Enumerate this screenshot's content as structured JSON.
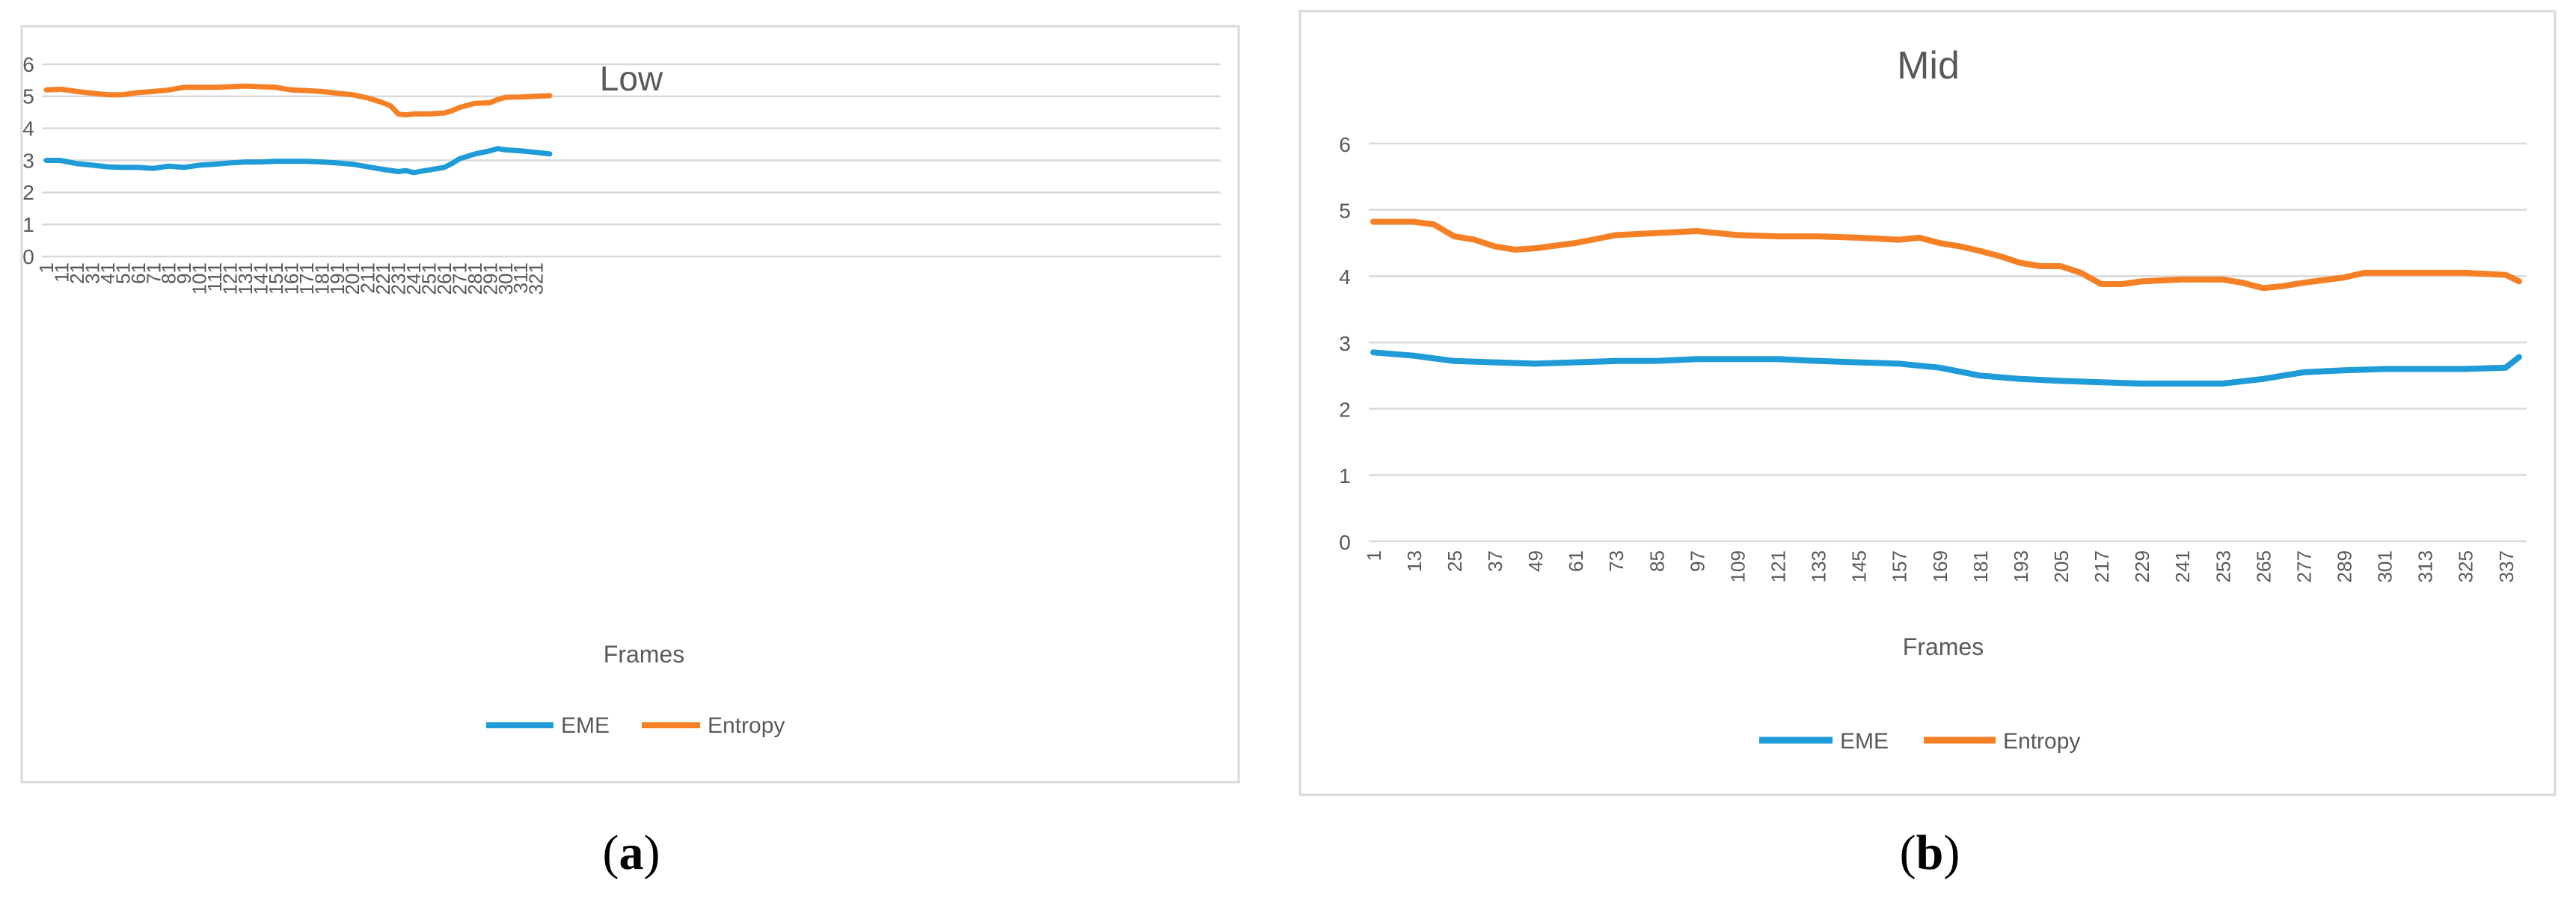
{
  "chart_data": [
    {
      "type": "line",
      "title": "Low",
      "xlabel": "Frames",
      "ylabel": "",
      "ylim": [
        0,
        6
      ],
      "yticks": [
        "0",
        "1",
        "2",
        "3",
        "4",
        "5",
        "6"
      ],
      "x_count": 330,
      "xticks": [
        "1",
        "11",
        "21",
        "31",
        "41",
        "51",
        "61",
        "71",
        "81",
        "91",
        "101",
        "111",
        "121",
        "131",
        "141",
        "151",
        "161",
        "171",
        "181",
        "191",
        "201",
        "211",
        "221",
        "231",
        "241",
        "251",
        "261",
        "271",
        "281",
        "291",
        "301",
        "311",
        "321"
      ],
      "legend": [
        "EME",
        "Entropy"
      ],
      "caption_open": "(",
      "caption_letter": "a",
      "caption_close": ")",
      "series": [
        {
          "name": "EME",
          "color": "#1F9BD7",
          "points": [
            [
              1,
              3.0
            ],
            [
              10,
              3.0
            ],
            [
              21,
              2.9
            ],
            [
              31,
              2.85
            ],
            [
              41,
              2.8
            ],
            [
              51,
              2.78
            ],
            [
              61,
              2.78
            ],
            [
              71,
              2.75
            ],
            [
              81,
              2.82
            ],
            [
              91,
              2.78
            ],
            [
              101,
              2.85
            ],
            [
              111,
              2.88
            ],
            [
              121,
              2.92
            ],
            [
              131,
              2.95
            ],
            [
              141,
              2.95
            ],
            [
              151,
              2.97
            ],
            [
              161,
              2.97
            ],
            [
              171,
              2.97
            ],
            [
              181,
              2.95
            ],
            [
              191,
              2.92
            ],
            [
              201,
              2.88
            ],
            [
              211,
              2.8
            ],
            [
              221,
              2.72
            ],
            [
              231,
              2.65
            ],
            [
              236,
              2.68
            ],
            [
              241,
              2.62
            ],
            [
              251,
              2.7
            ],
            [
              261,
              2.78
            ],
            [
              266,
              2.9
            ],
            [
              271,
              3.05
            ],
            [
              281,
              3.2
            ],
            [
              291,
              3.3
            ],
            [
              296,
              3.37
            ],
            [
              301,
              3.33
            ],
            [
              311,
              3.3
            ],
            [
              321,
              3.25
            ],
            [
              330,
              3.2
            ]
          ]
        },
        {
          "name": "Entropy",
          "color": "#F58025",
          "points": [
            [
              1,
              5.2
            ],
            [
              11,
              5.22
            ],
            [
              21,
              5.15
            ],
            [
              31,
              5.1
            ],
            [
              41,
              5.05
            ],
            [
              51,
              5.05
            ],
            [
              61,
              5.12
            ],
            [
              71,
              5.15
            ],
            [
              81,
              5.2
            ],
            [
              91,
              5.28
            ],
            [
              101,
              5.28
            ],
            [
              111,
              5.28
            ],
            [
              121,
              5.3
            ],
            [
              131,
              5.32
            ],
            [
              141,
              5.3
            ],
            [
              151,
              5.28
            ],
            [
              161,
              5.2
            ],
            [
              171,
              5.18
            ],
            [
              181,
              5.15
            ],
            [
              191,
              5.1
            ],
            [
              201,
              5.05
            ],
            [
              211,
              4.95
            ],
            [
              221,
              4.8
            ],
            [
              226,
              4.7
            ],
            [
              231,
              4.45
            ],
            [
              236,
              4.42
            ],
            [
              241,
              4.45
            ],
            [
              251,
              4.45
            ],
            [
              261,
              4.48
            ],
            [
              266,
              4.55
            ],
            [
              271,
              4.65
            ],
            [
              281,
              4.78
            ],
            [
              291,
              4.8
            ],
            [
              296,
              4.9
            ],
            [
              301,
              4.97
            ],
            [
              311,
              4.98
            ],
            [
              321,
              5.0
            ],
            [
              330,
              5.02
            ]
          ]
        }
      ]
    },
    {
      "type": "line",
      "title": "Mid",
      "xlabel": "Frames",
      "ylabel": "",
      "ylim": [
        0,
        6
      ],
      "yticks": [
        "0",
        "1",
        "2",
        "3",
        "4",
        "5",
        "6"
      ],
      "x_count": 341,
      "xticks": [
        "1",
        "13",
        "25",
        "37",
        "49",
        "61",
        "73",
        "85",
        "97",
        "109",
        "121",
        "133",
        "145",
        "157",
        "169",
        "181",
        "193",
        "205",
        "217",
        "229",
        "241",
        "253",
        "265",
        "277",
        "289",
        "301",
        "313",
        "325",
        "337"
      ],
      "legend": [
        "EME",
        "Entropy"
      ],
      "caption_open": "(",
      "caption_letter": "b",
      "caption_close": ")",
      "series": [
        {
          "name": "EME",
          "color": "#1F9BD7",
          "points": [
            [
              1,
              2.85
            ],
            [
              13,
              2.8
            ],
            [
              25,
              2.72
            ],
            [
              37,
              2.7
            ],
            [
              49,
              2.68
            ],
            [
              61,
              2.7
            ],
            [
              73,
              2.72
            ],
            [
              85,
              2.72
            ],
            [
              97,
              2.75
            ],
            [
              109,
              2.75
            ],
            [
              121,
              2.75
            ],
            [
              133,
              2.72
            ],
            [
              145,
              2.7
            ],
            [
              157,
              2.68
            ],
            [
              169,
              2.62
            ],
            [
              181,
              2.5
            ],
            [
              193,
              2.45
            ],
            [
              205,
              2.42
            ],
            [
              217,
              2.4
            ],
            [
              229,
              2.38
            ],
            [
              241,
              2.38
            ],
            [
              253,
              2.38
            ],
            [
              265,
              2.45
            ],
            [
              277,
              2.55
            ],
            [
              289,
              2.58
            ],
            [
              301,
              2.6
            ],
            [
              313,
              2.6
            ],
            [
              325,
              2.6
            ],
            [
              337,
              2.62
            ],
            [
              341,
              2.78
            ]
          ]
        },
        {
          "name": "Entropy",
          "color": "#F58025",
          "points": [
            [
              1,
              4.82
            ],
            [
              13,
              4.82
            ],
            [
              19,
              4.78
            ],
            [
              25,
              4.6
            ],
            [
              31,
              4.55
            ],
            [
              37,
              4.45
            ],
            [
              43,
              4.4
            ],
            [
              49,
              4.42
            ],
            [
              61,
              4.5
            ],
            [
              73,
              4.62
            ],
            [
              85,
              4.65
            ],
            [
              97,
              4.68
            ],
            [
              109,
              4.62
            ],
            [
              121,
              4.6
            ],
            [
              133,
              4.6
            ],
            [
              145,
              4.58
            ],
            [
              157,
              4.55
            ],
            [
              163,
              4.58
            ],
            [
              169,
              4.5
            ],
            [
              175,
              4.45
            ],
            [
              181,
              4.38
            ],
            [
              187,
              4.3
            ],
            [
              193,
              4.2
            ],
            [
              199,
              4.15
            ],
            [
              205,
              4.15
            ],
            [
              211,
              4.05
            ],
            [
              217,
              3.88
            ],
            [
              223,
              3.88
            ],
            [
              229,
              3.92
            ],
            [
              241,
              3.95
            ],
            [
              253,
              3.95
            ],
            [
              259,
              3.9
            ],
            [
              265,
              3.82
            ],
            [
              271,
              3.85
            ],
            [
              277,
              3.9
            ],
            [
              289,
              3.98
            ],
            [
              295,
              4.05
            ],
            [
              301,
              4.05
            ],
            [
              313,
              4.05
            ],
            [
              325,
              4.05
            ],
            [
              337,
              4.02
            ],
            [
              341,
              3.92
            ]
          ]
        }
      ]
    }
  ]
}
